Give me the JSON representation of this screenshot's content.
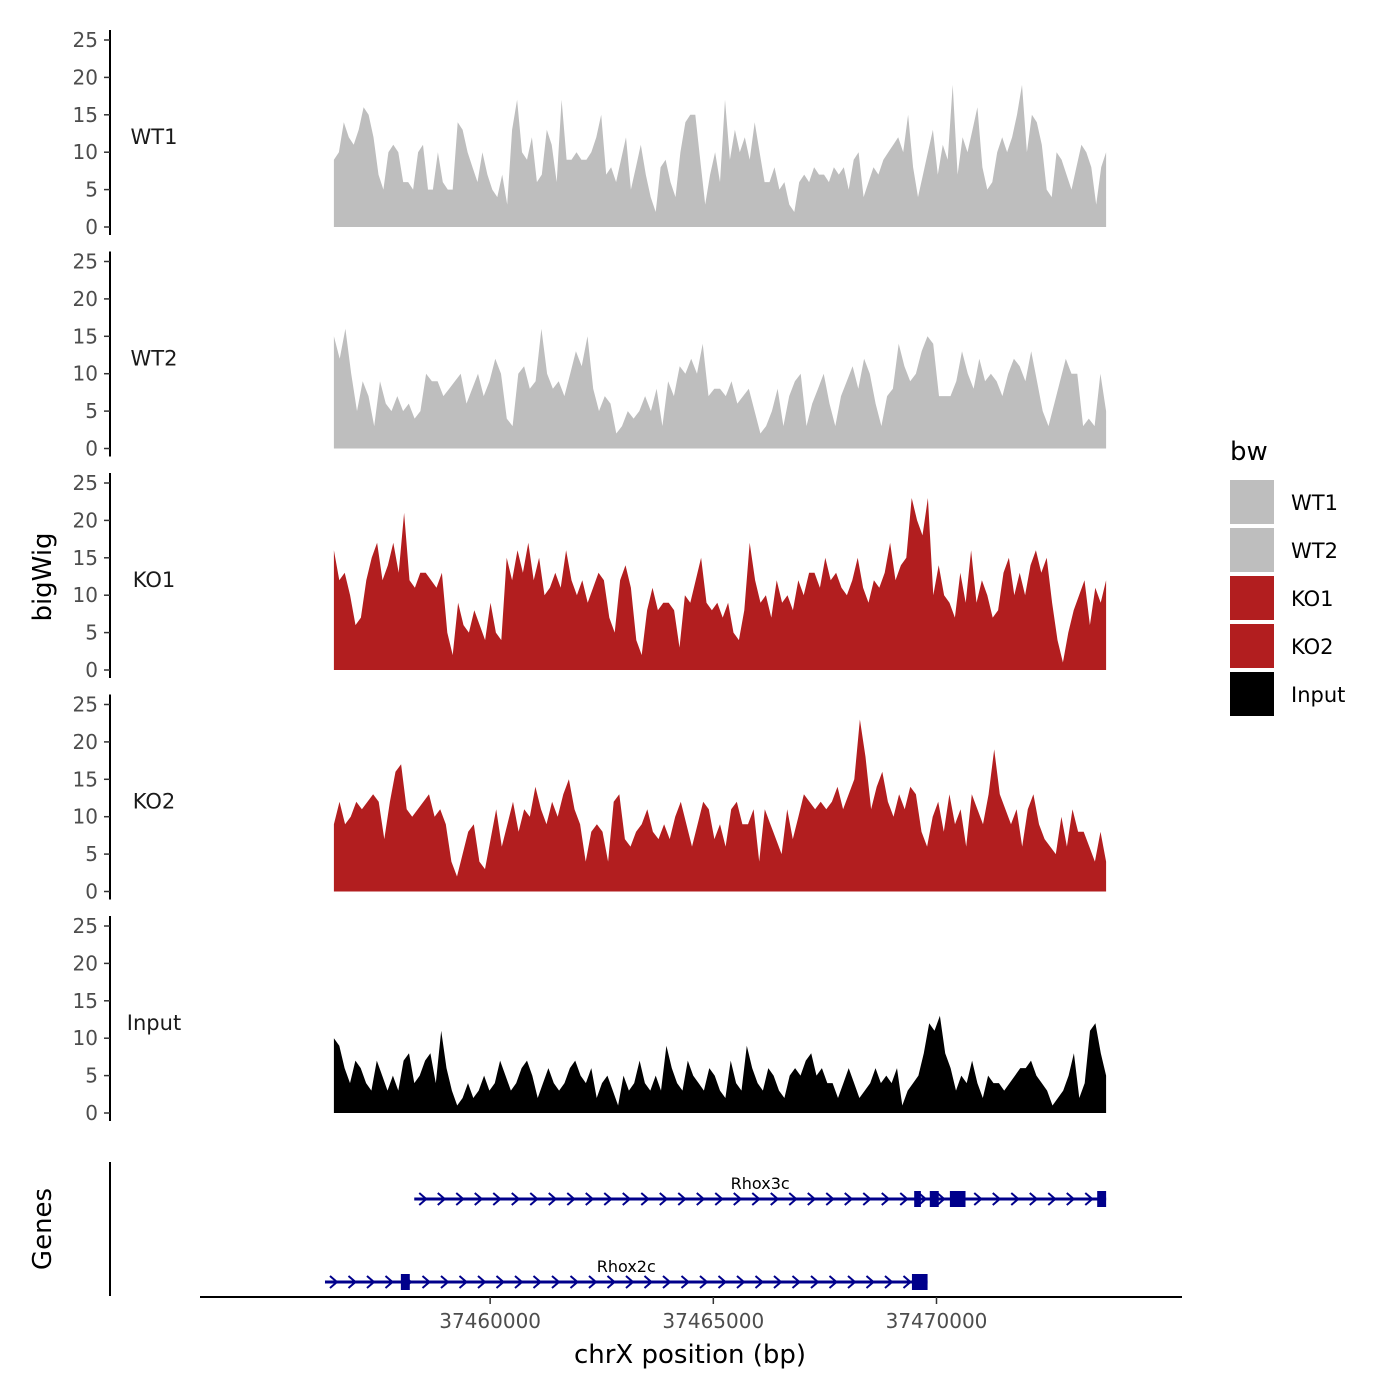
{
  "chart_data": {
    "type": "area",
    "title": "",
    "ylabel": "bigWig",
    "genes_label": "Genes",
    "xlabel": "chrX position (bp)",
    "x_range": [
      37453500,
      37475500
    ],
    "x_ticks": [
      37460000,
      37465000,
      37470000
    ],
    "x_tick_labels": [
      "37460000",
      "37465000",
      "37470000"
    ],
    "ylim": [
      0,
      25
    ],
    "y_ticks": [
      0,
      5,
      10,
      15,
      20,
      25
    ],
    "y_tick_labels": [
      "0",
      "5",
      "10",
      "15",
      "20",
      "25"
    ],
    "legend": {
      "title": "bw",
      "placement": "right",
      "entries": [
        {
          "name": "WT1",
          "color": "#bebebe"
        },
        {
          "name": "WT2",
          "color": "#bebebe"
        },
        {
          "name": "KO1",
          "color": "#b21e1f"
        },
        {
          "name": "KO2",
          "color": "#b21e1f"
        },
        {
          "name": "Input",
          "color": "#000000"
        }
      ]
    },
    "series": [
      {
        "name": "WT1",
        "color": "#bebebe",
        "x_start": 37456500,
        "x_end": 37473800,
        "values": [
          9,
          10,
          14,
          12,
          11,
          13,
          16,
          15,
          12,
          7,
          5,
          10,
          11,
          10,
          6,
          6,
          5,
          10,
          11,
          5,
          5,
          10,
          6,
          5,
          5,
          14,
          13,
          10,
          8,
          6,
          10,
          7,
          5,
          4,
          7,
          3,
          13,
          17,
          10,
          9,
          12,
          6,
          7,
          13,
          11,
          6,
          17,
          9,
          9,
          10,
          9,
          9,
          10,
          12,
          15,
          7,
          8,
          6,
          9,
          12,
          5,
          8,
          11,
          7,
          4,
          2,
          8,
          9,
          6,
          4,
          10,
          14,
          15,
          15,
          9,
          3,
          7,
          10,
          6,
          17,
          9,
          13,
          10,
          12,
          9,
          14,
          10,
          6,
          6,
          8,
          5,
          6,
          3,
          2,
          6,
          7,
          6,
          8,
          7,
          7,
          6,
          8,
          7,
          8,
          5,
          9,
          10,
          4,
          6,
          8,
          7,
          9,
          10,
          11,
          12,
          10,
          15,
          8,
          4,
          7,
          10,
          13,
          7,
          11,
          9,
          19,
          7,
          12,
          10,
          13,
          16,
          8,
          5,
          6,
          10,
          12,
          10,
          12,
          15,
          19,
          10,
          15,
          14,
          11,
          5,
          4,
          10,
          9,
          7,
          5,
          8,
          11,
          10,
          8,
          3,
          8,
          10
        ]
      },
      {
        "name": "WT2",
        "color": "#bebebe",
        "x_start": 37456500,
        "x_end": 37473800,
        "values": [
          15,
          12,
          16,
          10,
          5,
          9,
          7,
          3,
          9,
          6,
          5,
          7,
          5,
          6,
          4,
          5,
          10,
          9,
          9,
          7,
          8,
          9,
          10,
          6,
          8,
          10,
          7,
          9,
          12,
          10,
          4,
          3,
          10,
          11,
          8,
          9,
          16,
          10,
          8,
          9,
          7,
          10,
          13,
          11,
          15,
          8,
          5,
          7,
          6,
          2,
          3,
          5,
          4,
          5,
          7,
          5,
          8,
          3,
          9,
          7,
          11,
          10,
          12,
          10,
          14,
          7,
          8,
          8,
          7,
          9,
          6,
          7,
          8,
          5,
          2,
          3,
          5,
          8,
          3,
          7,
          9,
          10,
          3,
          6,
          8,
          10,
          6,
          3,
          7,
          9,
          11,
          8,
          12,
          10,
          6,
          3,
          7,
          8,
          14,
          11,
          9,
          10,
          13,
          15,
          14,
          7,
          7,
          7,
          9,
          13,
          10,
          8,
          12,
          9,
          10,
          9,
          7,
          10,
          12,
          11,
          9,
          13,
          9,
          5,
          3,
          6,
          9,
          12,
          10,
          10,
          3,
          4,
          3,
          10,
          5
        ]
      },
      {
        "name": "KO1",
        "color": "#b21e1f",
        "x_start": 37456500,
        "x_end": 37473800,
        "values": [
          16,
          12,
          13,
          10,
          6,
          7,
          12,
          15,
          17,
          12,
          14,
          17,
          13,
          21,
          12,
          11,
          13,
          13,
          12,
          11,
          13,
          5,
          2,
          9,
          6,
          5,
          8,
          6,
          4,
          9,
          5,
          4,
          15,
          12,
          16,
          13,
          17,
          12,
          15,
          10,
          11,
          13,
          11,
          16,
          12,
          10,
          12,
          9,
          11,
          13,
          12,
          7,
          5,
          12,
          14,
          11,
          4,
          2,
          8,
          11,
          8,
          9,
          9,
          8,
          3,
          10,
          9,
          12,
          15,
          9,
          8,
          9,
          7,
          9,
          5,
          4,
          8,
          17,
          12,
          9,
          10,
          7,
          12,
          9,
          10,
          8,
          12,
          10,
          13,
          13,
          11,
          15,
          12,
          13,
          11,
          10,
          12,
          15,
          11,
          9,
          12,
          11,
          13,
          17,
          12,
          14,
          15,
          23,
          20,
          18,
          23,
          10,
          14,
          10,
          9,
          7,
          13,
          9,
          16,
          9,
          12,
          10,
          7,
          8,
          13,
          15,
          10,
          13,
          10,
          14,
          16,
          13,
          15,
          9,
          4,
          1,
          5,
          8,
          10,
          12,
          6,
          11,
          9,
          12
        ]
      },
      {
        "name": "KO2",
        "color": "#b21e1f",
        "x_start": 37456500,
        "x_end": 37473800,
        "values": [
          9,
          12,
          9,
          10,
          12,
          11,
          12,
          13,
          12,
          7,
          12,
          16,
          17,
          11,
          10,
          11,
          12,
          13,
          10,
          11,
          9,
          4,
          2,
          5,
          8,
          9,
          4,
          3,
          7,
          11,
          6,
          9,
          12,
          8,
          11,
          10,
          14,
          11,
          9,
          12,
          10,
          13,
          15,
          11,
          9,
          4,
          8,
          9,
          8,
          4,
          12,
          13,
          7,
          6,
          8,
          9,
          11,
          8,
          7,
          9,
          7,
          10,
          12,
          9,
          6,
          9,
          12,
          11,
          7,
          9,
          6,
          11,
          12,
          9,
          9,
          11,
          4,
          11,
          9,
          7,
          5,
          11,
          7,
          10,
          13,
          12,
          11,
          12,
          11,
          12,
          14,
          11,
          13,
          15,
          23,
          18,
          11,
          14,
          16,
          12,
          10,
          13,
          11,
          14,
          13,
          8,
          6,
          10,
          12,
          8,
          13,
          9,
          11,
          6,
          13,
          11,
          9,
          13,
          19,
          13,
          11,
          9,
          11,
          6,
          11,
          13,
          9,
          7,
          6,
          5,
          10,
          6,
          11,
          8,
          8,
          6,
          4,
          8,
          4
        ]
      },
      {
        "name": "Input",
        "color": "#000000",
        "x_start": 37456500,
        "x_end": 37473800,
        "values": [
          10,
          9,
          6,
          4,
          7,
          6,
          4,
          3,
          7,
          5,
          3,
          5,
          3,
          7,
          8,
          4,
          5,
          7,
          8,
          4,
          11,
          6,
          3,
          1,
          2,
          4,
          2,
          3,
          5,
          3,
          4,
          7,
          5,
          3,
          4,
          6,
          7,
          5,
          2,
          4,
          6,
          4,
          3,
          4,
          6,
          7,
          5,
          4,
          6,
          2,
          4,
          5,
          3,
          1,
          5,
          3,
          4,
          7,
          4,
          3,
          5,
          3,
          9,
          6,
          4,
          3,
          7,
          5,
          4,
          3,
          6,
          5,
          3,
          2,
          7,
          4,
          3,
          9,
          6,
          4,
          3,
          6,
          5,
          3,
          2,
          5,
          6,
          5,
          7,
          8,
          5,
          6,
          4,
          4,
          2,
          4,
          6,
          4,
          2,
          3,
          4,
          6,
          4,
          5,
          4,
          6,
          1,
          3,
          4,
          5,
          8,
          12,
          11,
          13,
          8,
          6,
          3,
          5,
          4,
          7,
          4,
          2,
          5,
          4,
          4,
          3,
          4,
          5,
          6,
          6,
          7,
          5,
          4,
          3,
          1,
          2,
          3,
          5,
          8,
          2,
          4,
          11,
          12,
          8,
          5
        ]
      }
    ],
    "genes": [
      {
        "name": "Rhox3c",
        "color": "#00008b",
        "start": 37458300,
        "end": 37473800,
        "exons": [
          [
            37469500,
            37469650
          ],
          [
            37469850,
            37470050
          ],
          [
            37470300,
            37470650
          ],
          [
            37473600,
            37473800
          ]
        ]
      },
      {
        "name": "Rhox2c",
        "color": "#00008b",
        "start": 37456300,
        "end": 37469800,
        "exons": [
          [
            37458000,
            37458200
          ],
          [
            37469450,
            37469800
          ]
        ]
      }
    ]
  }
}
